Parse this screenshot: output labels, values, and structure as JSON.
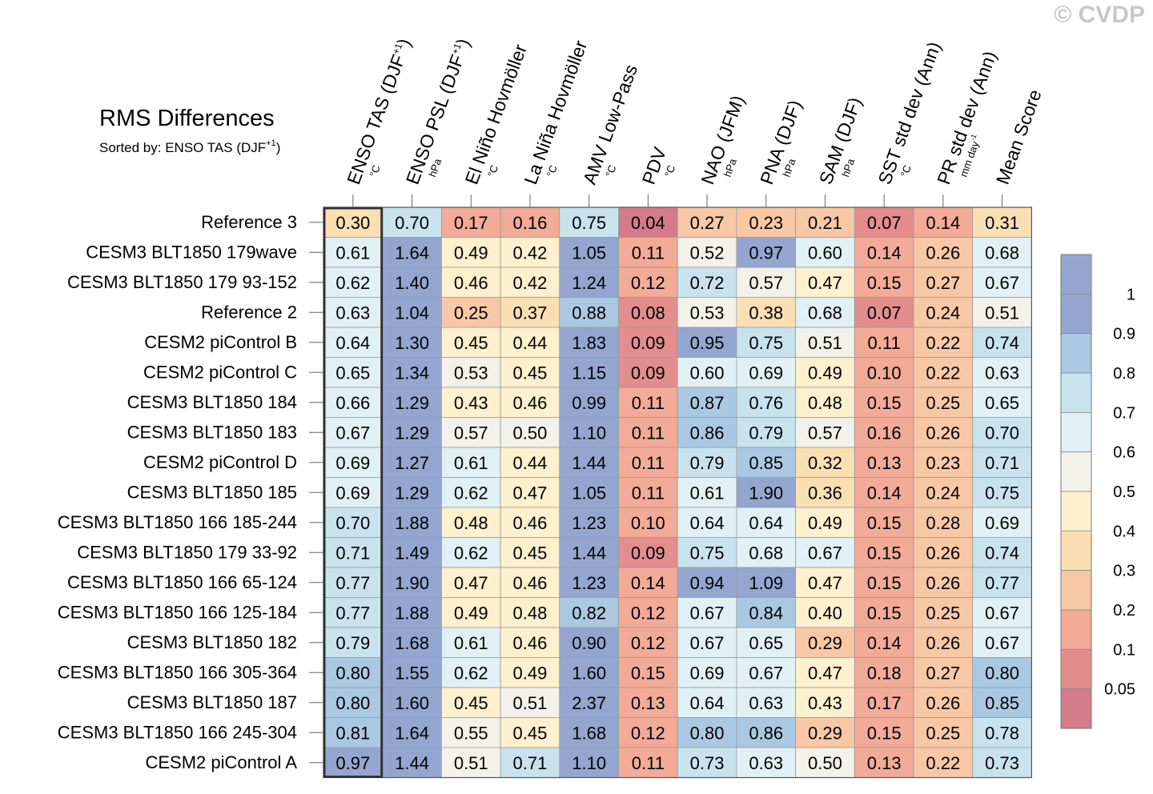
{
  "watermark": "© CVDP",
  "chart_data": {
    "type": "heatmap",
    "title": "RMS Differences",
    "subtitle_prefix": "Sorted by: ENSO TAS (DJF",
    "subtitle_sup": "+1",
    "subtitle_suffix": ")",
    "columns": [
      {
        "main": "ENSO TAS (DJF",
        "sup": "+1",
        "tail": ")",
        "unit": "°C",
        "unit_sup": ""
      },
      {
        "main": "ENSO PSL (DJF",
        "sup": "+1",
        "tail": ")",
        "unit": "hPa",
        "unit_sup": ""
      },
      {
        "main": "El Niño Hovmöller",
        "sup": "",
        "tail": "",
        "unit": "°C",
        "unit_sup": ""
      },
      {
        "main": "La Niña Hovmöller",
        "sup": "",
        "tail": "",
        "unit": "°C",
        "unit_sup": ""
      },
      {
        "main": "AMV Low-Pass",
        "sup": "",
        "tail": "",
        "unit": "°C",
        "unit_sup": ""
      },
      {
        "main": "PDV",
        "sup": "",
        "tail": "",
        "unit": "°C",
        "unit_sup": ""
      },
      {
        "main": "NAO (JFM)",
        "sup": "",
        "tail": "",
        "unit": "hPa",
        "unit_sup": ""
      },
      {
        "main": "PNA (DJF)",
        "sup": "",
        "tail": "",
        "unit": "hPa",
        "unit_sup": ""
      },
      {
        "main": "SAM (DJF)",
        "sup": "",
        "tail": "",
        "unit": "hPa",
        "unit_sup": ""
      },
      {
        "main": "SST std dev (Ann)",
        "sup": "",
        "tail": "",
        "unit": "°C",
        "unit_sup": ""
      },
      {
        "main": "PR std dev (Ann)",
        "sup": "",
        "tail": "",
        "unit": "mm day",
        "unit_sup": "-1"
      },
      {
        "main": "Mean Score",
        "sup": "",
        "tail": "",
        "unit": "",
        "unit_sup": ""
      }
    ],
    "rows": [
      {
        "name": "Reference 3",
        "values": [
          0.3,
          0.7,
          0.17,
          0.16,
          0.75,
          0.04,
          0.27,
          0.23,
          0.21,
          0.07,
          0.14,
          0.31
        ]
      },
      {
        "name": "CESM3 BLT1850 179wave",
        "values": [
          0.61,
          1.64,
          0.49,
          0.42,
          1.05,
          0.11,
          0.52,
          0.97,
          0.6,
          0.14,
          0.26,
          0.68
        ]
      },
      {
        "name": "CESM3 BLT1850 179 93-152",
        "values": [
          0.62,
          1.4,
          0.46,
          0.42,
          1.24,
          0.12,
          0.72,
          0.57,
          0.47,
          0.15,
          0.27,
          0.67
        ]
      },
      {
        "name": "Reference 2",
        "values": [
          0.63,
          1.04,
          0.25,
          0.37,
          0.88,
          0.08,
          0.53,
          0.38,
          0.68,
          0.07,
          0.24,
          0.51
        ]
      },
      {
        "name": "CESM2 piControl B",
        "values": [
          0.64,
          1.3,
          0.45,
          0.44,
          1.83,
          0.09,
          0.95,
          0.75,
          0.51,
          0.11,
          0.22,
          0.74
        ]
      },
      {
        "name": "CESM2 piControl C",
        "values": [
          0.65,
          1.34,
          0.53,
          0.45,
          1.15,
          0.09,
          0.6,
          0.69,
          0.49,
          0.1,
          0.22,
          0.63
        ]
      },
      {
        "name": "CESM3 BLT1850 184",
        "values": [
          0.66,
          1.29,
          0.43,
          0.46,
          0.99,
          0.11,
          0.87,
          0.76,
          0.48,
          0.15,
          0.25,
          0.65
        ]
      },
      {
        "name": "CESM3 BLT1850 183",
        "values": [
          0.67,
          1.29,
          0.57,
          0.5,
          1.1,
          0.11,
          0.86,
          0.79,
          0.57,
          0.16,
          0.26,
          0.7
        ]
      },
      {
        "name": "CESM2 piControl D",
        "values": [
          0.69,
          1.27,
          0.61,
          0.44,
          1.44,
          0.11,
          0.79,
          0.85,
          0.32,
          0.13,
          0.23,
          0.71
        ]
      },
      {
        "name": "CESM3 BLT1850 185",
        "values": [
          0.69,
          1.29,
          0.62,
          0.47,
          1.05,
          0.11,
          0.61,
          1.9,
          0.36,
          0.14,
          0.24,
          0.75
        ]
      },
      {
        "name": "CESM3 BLT1850 166 185-244",
        "values": [
          0.7,
          1.88,
          0.48,
          0.46,
          1.23,
          0.1,
          0.64,
          0.64,
          0.49,
          0.15,
          0.28,
          0.69
        ]
      },
      {
        "name": "CESM3 BLT1850 179 33-92",
        "values": [
          0.71,
          1.49,
          0.62,
          0.45,
          1.44,
          0.09,
          0.75,
          0.68,
          0.67,
          0.15,
          0.26,
          0.74
        ]
      },
      {
        "name": "CESM3 BLT1850 166 65-124",
        "values": [
          0.77,
          1.9,
          0.47,
          0.46,
          1.23,
          0.14,
          0.94,
          1.09,
          0.47,
          0.15,
          0.26,
          0.77
        ]
      },
      {
        "name": "CESM3 BLT1850 166 125-184",
        "values": [
          0.77,
          1.88,
          0.49,
          0.48,
          0.82,
          0.12,
          0.67,
          0.84,
          0.4,
          0.15,
          0.25,
          0.67
        ]
      },
      {
        "name": "CESM3 BLT1850 182",
        "values": [
          0.79,
          1.68,
          0.61,
          0.46,
          0.9,
          0.12,
          0.67,
          0.65,
          0.29,
          0.14,
          0.26,
          0.67
        ]
      },
      {
        "name": "CESM3 BLT1850 166 305-364",
        "values": [
          0.8,
          1.55,
          0.62,
          0.49,
          1.6,
          0.15,
          0.69,
          0.67,
          0.47,
          0.18,
          0.27,
          0.8
        ]
      },
      {
        "name": "CESM3 BLT1850 187",
        "values": [
          0.8,
          1.6,
          0.45,
          0.51,
          2.37,
          0.13,
          0.64,
          0.63,
          0.43,
          0.17,
          0.26,
          0.85
        ]
      },
      {
        "name": "CESM3 BLT1850 166 245-304",
        "values": [
          0.81,
          1.64,
          0.55,
          0.45,
          1.68,
          0.12,
          0.8,
          0.86,
          0.29,
          0.15,
          0.25,
          0.78
        ]
      },
      {
        "name": "CESM2 piControl A",
        "values": [
          0.97,
          1.44,
          0.51,
          0.71,
          1.1,
          0.11,
          0.73,
          0.63,
          0.5,
          0.13,
          0.22,
          0.73
        ]
      }
    ],
    "highlight_column": 0,
    "colorbar": {
      "levels": [
        "1",
        "0.9",
        "0.8",
        "0.7",
        "0.6",
        "0.5",
        "0.4",
        "0.3",
        "0.2",
        "0.1",
        "0.05"
      ],
      "thresholds": [
        0.05,
        0.1,
        0.2,
        0.3,
        0.4,
        0.5,
        0.6,
        0.7,
        0.8,
        0.9,
        1.0
      ],
      "colors": [
        "#d37b89",
        "#e38d8d",
        "#f2ab97",
        "#f8c8a6",
        "#fbdfb4",
        "#fdf0cf",
        "#f2f2eb",
        "#e1f0f5",
        "#c8e3ee",
        "#aac8e2",
        "#94a6d0",
        "#94a6d0"
      ]
    }
  }
}
